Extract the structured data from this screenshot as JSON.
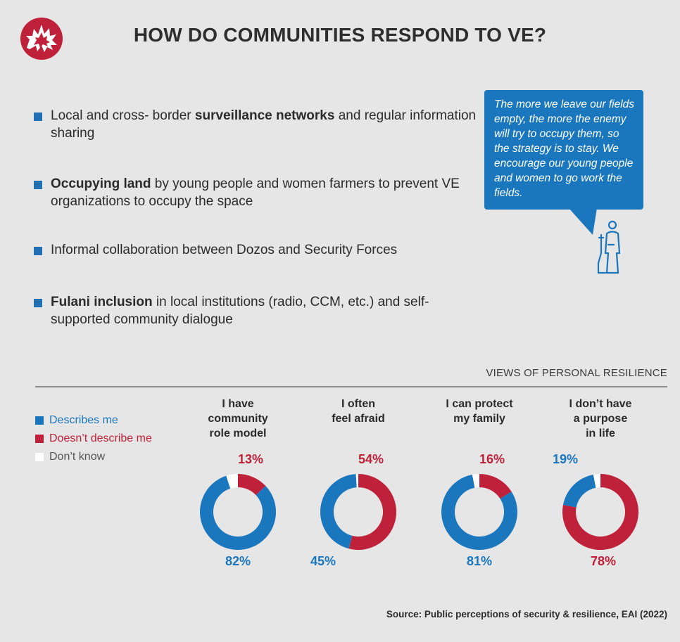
{
  "header": {
    "title": "HOW DO COMMUNITIES RESPOND TO VE?"
  },
  "bullets": [
    {
      "pre": "Local and cross- border ",
      "bold": "surveillance networks",
      "post": " and regular information sharing"
    },
    {
      "pre": "",
      "bold": "Occupying land",
      "post": " by young people and women farmers to prevent VE organizations to occupy the space"
    },
    {
      "pre": "Informal collaboration between Dozos and Security Forces",
      "bold": "",
      "post": ""
    },
    {
      "pre": "",
      "bold": "Fulani inclusion",
      "post": " in local institutions (radio, CCM, etc.) and self- supported community dialogue"
    }
  ],
  "quote": {
    "text": "The more we leave our fields empty, the more the enemy will try to occupy them, so the strategy is to stay. We encourage our young people and women to go work the fields."
  },
  "section_label": "VIEWS OF PERSONAL RESILIENCE",
  "legend": [
    {
      "label": "Describes me",
      "color": "#1a77bd"
    },
    {
      "label": "Doesn’t describe me",
      "color": "#c0213a"
    },
    {
      "label": "Don’t know",
      "color": "#ffffff"
    }
  ],
  "chart_data": {
    "type": "donut",
    "title": "VIEWS OF PERSONAL RESILIENCE",
    "categories": [
      "I have community role model",
      "I often feel afraid",
      "I can protect my family",
      "I don’t have a purpose in life"
    ],
    "category_lines": [
      [
        "I have",
        "community",
        "role model"
      ],
      [
        "I often",
        "feel afraid"
      ],
      [
        "I can protect",
        "my family"
      ],
      [
        "I don’t have",
        "a purpose",
        "in life"
      ]
    ],
    "series": [
      {
        "name": "Describes me",
        "color": "#1a77bd",
        "values": [
          82,
          45,
          81,
          19
        ]
      },
      {
        "name": "Doesn’t describe me",
        "color": "#c0213a",
        "values": [
          13,
          54,
          16,
          78
        ]
      },
      {
        "name": "Don’t know",
        "color": "#ffffff",
        "values": [
          5,
          1,
          3,
          3
        ]
      }
    ],
    "data_labels": {
      "describes": [
        "82%",
        "45%",
        "81%",
        "19%"
      ],
      "doesnt": [
        "13%",
        "54%",
        "16%",
        "78%"
      ]
    },
    "legend_position": "left"
  },
  "source": "Source: Public perceptions of security & resilience, EAI (2022)",
  "colors": {
    "background": "#e6e6e6",
    "blue": "#1a77bd",
    "red": "#c0213a",
    "logo": "#c0213a"
  }
}
